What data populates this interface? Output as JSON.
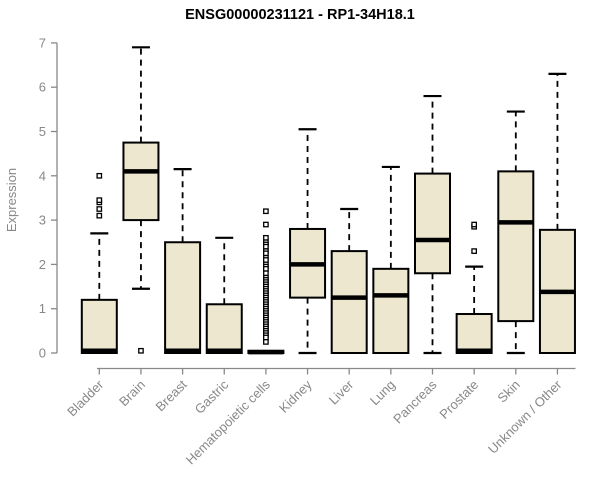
{
  "chart_data": {
    "type": "boxplot",
    "title": "ENSG00000231121 - RP1-34H18.1",
    "ylabel": "Expression",
    "xlabel": "",
    "ylim": [
      0,
      7
    ],
    "yticks": [
      0,
      1,
      2,
      3,
      4,
      5,
      6,
      7
    ],
    "grid": false,
    "legend": "none",
    "x_tick_rotation_deg": 45,
    "categories": [
      "Bladder",
      "Brain",
      "Breast",
      "Gastric",
      "Hematopoietic cells",
      "Kidney",
      "Liver",
      "Lung",
      "Pancreas",
      "Prostate",
      "Skin",
      "Unknown / Other"
    ],
    "series": [
      {
        "name": "Bladder",
        "low": 0,
        "q1": 0,
        "median": 0.05,
        "q3": 1.2,
        "high": 2.7,
        "outliers": [
          3.1,
          3.25,
          3.4,
          3.45,
          4.0
        ]
      },
      {
        "name": "Brain",
        "low": 1.45,
        "q1": 3.0,
        "median": 4.1,
        "q3": 4.75,
        "high": 6.9,
        "outliers": [
          0.05
        ]
      },
      {
        "name": "Breast",
        "low": 0,
        "q1": 0,
        "median": 0.05,
        "q3": 2.5,
        "high": 4.15,
        "outliers": []
      },
      {
        "name": "Gastric",
        "low": 0,
        "q1": 0,
        "median": 0.05,
        "q3": 1.1,
        "high": 2.6,
        "outliers": []
      },
      {
        "name": "Hematopoietic cells",
        "low": 0,
        "q1": 0,
        "median": 0.02,
        "q3": 0.05,
        "high": 0.05,
        "outliers": [
          3.2,
          2.9,
          2.6,
          2.5,
          2.45,
          2.4,
          2.3,
          2.25,
          2.15,
          2.1,
          2.0,
          1.95,
          1.9,
          1.8,
          1.7,
          1.65,
          1.6,
          1.55,
          1.5,
          1.45,
          1.4,
          1.35,
          1.3,
          1.25,
          1.2,
          1.15,
          1.1,
          1.05,
          1.0,
          0.95,
          0.9,
          0.85,
          0.8,
          0.75,
          0.7,
          0.65,
          0.6,
          0.55,
          0.5,
          0.45,
          0.4,
          0.35,
          0.25
        ]
      },
      {
        "name": "Kidney",
        "low": 0,
        "q1": 1.25,
        "median": 2.0,
        "q3": 2.8,
        "high": 5.05,
        "outliers": []
      },
      {
        "name": "Liver",
        "low": 0,
        "q1": 0,
        "median": 1.25,
        "q3": 2.3,
        "high": 3.25,
        "outliers": []
      },
      {
        "name": "Lung",
        "low": 0,
        "q1": 0,
        "median": 1.3,
        "q3": 1.9,
        "high": 4.2,
        "outliers": []
      },
      {
        "name": "Pancreas",
        "low": 0,
        "q1": 1.8,
        "median": 2.55,
        "q3": 4.05,
        "high": 5.8,
        "outliers": []
      },
      {
        "name": "Prostate",
        "low": 0,
        "q1": 0,
        "median": 0.05,
        "q3": 0.88,
        "high": 1.95,
        "outliers": [
          2.3,
          2.85,
          2.9
        ]
      },
      {
        "name": "Skin",
        "low": 0,
        "q1": 0.72,
        "median": 2.95,
        "q3": 4.1,
        "high": 5.45,
        "outliers": []
      },
      {
        "name": "Unknown / Other",
        "low": 0,
        "q1": 0,
        "median": 1.38,
        "q3": 2.78,
        "high": 6.3,
        "outliers": []
      }
    ]
  },
  "style": {
    "background": "#FFFFFF",
    "box_fill": "#EDE7CF",
    "box_stroke": "#000000",
    "median_color": "#000000",
    "whisker_color": "#000000",
    "outlier_fill": "#FFFFFF",
    "outlier_stroke": "#000000",
    "axis_color": "#888888",
    "tick_label_color": "#888888",
    "title_color": "#000000"
  }
}
